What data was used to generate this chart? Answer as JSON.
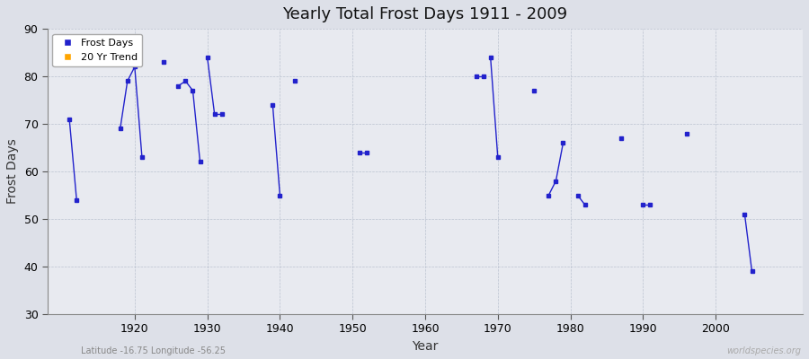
{
  "title": "Yearly Total Frost Days 1911 - 2009",
  "xlabel": "Year",
  "ylabel": "Frost Days",
  "subtitle": "Latitude -16.75 Longitude -56.25",
  "watermark": "worldspecies.org",
  "ylim": [
    30,
    90
  ],
  "xlim": [
    1908,
    2012
  ],
  "yticks": [
    30,
    40,
    50,
    60,
    70,
    80,
    90
  ],
  "xticks": [
    1920,
    1930,
    1940,
    1950,
    1960,
    1970,
    1980,
    1990,
    2000
  ],
  "background_color": "#dde0e8",
  "plot_bg_color": "#e8eaf0",
  "line_color": "#2222cc",
  "marker_color": "#2222cc",
  "legend_frost_color": "#2222cc",
  "legend_trend_color": "#ffa500",
  "connected_segments": [
    [
      [
        1911,
        71
      ],
      [
        1912,
        54
      ]
    ],
    [
      [
        1918,
        69
      ],
      [
        1919,
        79
      ],
      [
        1920,
        82
      ],
      [
        1921,
        63
      ]
    ],
    [
      [
        1924,
        83
      ]
    ],
    [
      [
        1926,
        78
      ],
      [
        1927,
        79
      ],
      [
        1928,
        77
      ],
      [
        1929,
        62
      ]
    ],
    [
      [
        1930,
        84
      ],
      [
        1931,
        72
      ],
      [
        1932,
        72
      ]
    ],
    [
      [
        1939,
        74
      ],
      [
        1940,
        55
      ]
    ],
    [
      [
        1942,
        79
      ]
    ],
    [
      [
        1951,
        64
      ],
      [
        1952,
        64
      ]
    ],
    [
      [
        1967,
        80
      ],
      [
        1968,
        80
      ]
    ],
    [
      [
        1969,
        84
      ],
      [
        1970,
        63
      ]
    ],
    [
      [
        1975,
        77
      ]
    ],
    [
      [
        1977,
        55
      ],
      [
        1978,
        58
      ],
      [
        1979,
        66
      ]
    ],
    [
      [
        1981,
        55
      ],
      [
        1982,
        53
      ]
    ],
    [
      [
        1987,
        67
      ]
    ],
    [
      [
        1990,
        53
      ],
      [
        1991,
        53
      ]
    ],
    [
      [
        1996,
        68
      ]
    ],
    [
      [
        2004,
        51
      ],
      [
        2005,
        39
      ]
    ]
  ]
}
